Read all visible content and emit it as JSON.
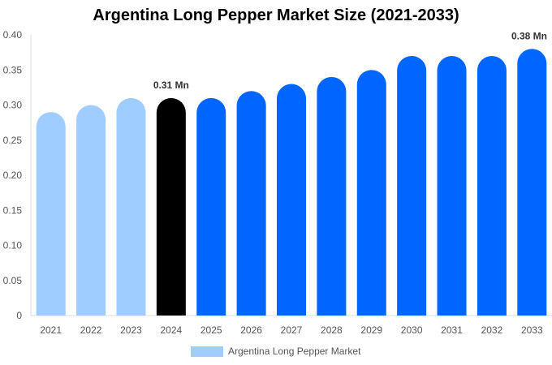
{
  "chart_data": {
    "type": "bar",
    "title": "Argentina Long Pepper Market Size (2021-2033)",
    "categories": [
      "2021",
      "2022",
      "2023",
      "2024",
      "2025",
      "2026",
      "2027",
      "2028",
      "2029",
      "2030",
      "2031",
      "2032",
      "2033"
    ],
    "series": [
      {
        "name": "Argentina Long Pepper Market",
        "values": [
          0.29,
          0.3,
          0.31,
          0.31,
          0.31,
          0.32,
          0.33,
          0.34,
          0.35,
          0.37,
          0.37,
          0.37,
          0.38
        ]
      }
    ],
    "ylim": [
      0,
      0.4
    ],
    "yticks": [
      "0",
      "0.05",
      "0.10",
      "0.15",
      "0.20",
      "0.25",
      "0.30",
      "0.35",
      "0.40"
    ],
    "data_labels": [
      {
        "category": "2024",
        "text": "0.31 Mn"
      },
      {
        "category": "2033",
        "text": "0.38 Mn"
      }
    ],
    "colors": {
      "historical": "#a0cdff",
      "base_year": "#000000",
      "forecast": "#0066ff"
    },
    "historical_years": [
      "2021",
      "2022",
      "2023"
    ],
    "base_year": "2024",
    "legend_placement": "bottom",
    "grid": false
  }
}
